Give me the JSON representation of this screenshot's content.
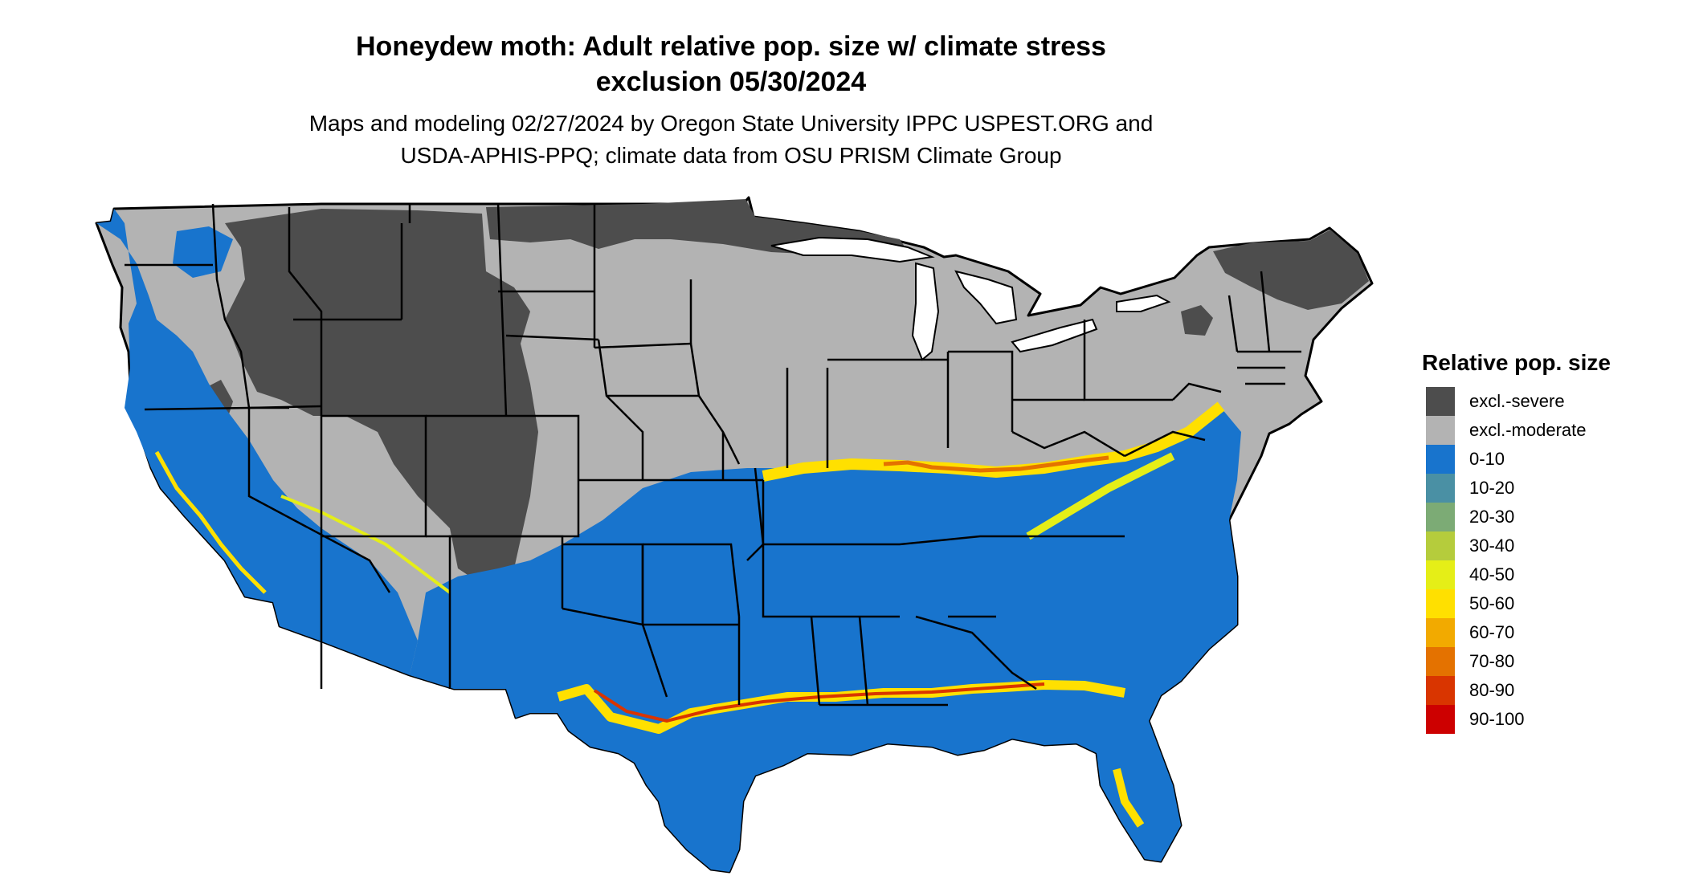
{
  "title": {
    "line1": "Honeydew moth: Adult relative pop. size w/ climate stress",
    "line2": "exclusion 05/30/2024"
  },
  "subtitle": {
    "line1": "Maps and modeling 02/27/2024 by Oregon State University IPPC USPEST.ORG and",
    "line2": "USDA-APHIS-PPQ; climate data from OSU PRISM Climate Group"
  },
  "legend": {
    "title": "Relative pop. size",
    "items": [
      {
        "label": "excl.-severe",
        "color": "#4d4d4d"
      },
      {
        "label": "excl.-moderate",
        "color": "#b3b3b3"
      },
      {
        "label": "0-10",
        "color": "#1874cd"
      },
      {
        "label": "10-20",
        "color": "#4a90a4"
      },
      {
        "label": "20-30",
        "color": "#7cab75"
      },
      {
        "label": "30-40",
        "color": "#b5cc3c"
      },
      {
        "label": "40-50",
        "color": "#e5ee17"
      },
      {
        "label": "50-60",
        "color": "#ffe000"
      },
      {
        "label": "60-70",
        "color": "#f2aa00"
      },
      {
        "label": "70-80",
        "color": "#e47200"
      },
      {
        "label": "80-90",
        "color": "#d93500"
      },
      {
        "label": "90-100",
        "color": "#cd0000"
      }
    ]
  }
}
